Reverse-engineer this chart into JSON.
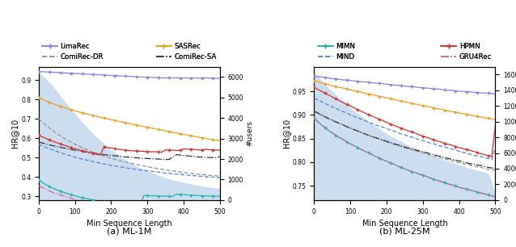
{
  "ml1m": {
    "x": [
      0,
      10,
      20,
      30,
      40,
      50,
      60,
      70,
      80,
      90,
      100,
      110,
      120,
      130,
      140,
      150,
      160,
      170,
      180,
      190,
      200,
      210,
      220,
      230,
      240,
      250,
      260,
      270,
      280,
      290,
      300,
      310,
      320,
      330,
      340,
      350,
      360,
      370,
      380,
      390,
      400,
      410,
      420,
      430,
      440,
      450,
      460,
      470,
      480,
      490,
      500
    ],
    "limarec": [
      0.945,
      0.944,
      0.943,
      0.942,
      0.941,
      0.94,
      0.939,
      0.938,
      0.937,
      0.936,
      0.935,
      0.934,
      0.933,
      0.932,
      0.931,
      0.93,
      0.929,
      0.928,
      0.927,
      0.926,
      0.925,
      0.924,
      0.923,
      0.922,
      0.921,
      0.92,
      0.919,
      0.918,
      0.917,
      0.916,
      0.916,
      0.915,
      0.914,
      0.913,
      0.912,
      0.912,
      0.913,
      0.912,
      0.913,
      0.912,
      0.912,
      0.912,
      0.911,
      0.912,
      0.911,
      0.911,
      0.912,
      0.911,
      0.911,
      0.91,
      0.91
    ],
    "sasrec": [
      0.808,
      0.8,
      0.792,
      0.785,
      0.778,
      0.771,
      0.765,
      0.759,
      0.753,
      0.747,
      0.742,
      0.737,
      0.732,
      0.727,
      0.722,
      0.717,
      0.713,
      0.709,
      0.704,
      0.7,
      0.696,
      0.692,
      0.688,
      0.684,
      0.68,
      0.676,
      0.672,
      0.668,
      0.664,
      0.66,
      0.657,
      0.653,
      0.649,
      0.645,
      0.642,
      0.638,
      0.634,
      0.631,
      0.627,
      0.623,
      0.62,
      0.616,
      0.613,
      0.609,
      0.606,
      0.602,
      0.599,
      0.596,
      0.593,
      0.59,
      0.587
    ],
    "comirec_dr": [
      0.7,
      0.683,
      0.667,
      0.652,
      0.638,
      0.624,
      0.612,
      0.6,
      0.589,
      0.579,
      0.569,
      0.56,
      0.551,
      0.543,
      0.535,
      0.528,
      0.521,
      0.514,
      0.508,
      0.502,
      0.496,
      0.491,
      0.486,
      0.481,
      0.477,
      0.472,
      0.468,
      0.464,
      0.46,
      0.456,
      0.453,
      0.449,
      0.446,
      0.442,
      0.439,
      0.436,
      0.433,
      0.431,
      0.428,
      0.425,
      0.423,
      0.42,
      0.418,
      0.416,
      0.414,
      0.412,
      0.41,
      0.408,
      0.407,
      0.405,
      0.403
    ],
    "comirec_sa": [
      0.58,
      0.575,
      0.57,
      0.565,
      0.561,
      0.557,
      0.553,
      0.549,
      0.545,
      0.542,
      0.538,
      0.535,
      0.532,
      0.529,
      0.526,
      0.523,
      0.52,
      0.518,
      0.515,
      0.513,
      0.511,
      0.509,
      0.507,
      0.505,
      0.503,
      0.502,
      0.5,
      0.499,
      0.497,
      0.496,
      0.495,
      0.494,
      0.493,
      0.492,
      0.491,
      0.49,
      0.49,
      0.503,
      0.515,
      0.513,
      0.511,
      0.509,
      0.507,
      0.505,
      0.503,
      0.502,
      0.501,
      0.5,
      0.5,
      0.499,
      0.505
    ],
    "mimn": [
      0.383,
      0.371,
      0.36,
      0.35,
      0.341,
      0.333,
      0.326,
      0.319,
      0.313,
      0.307,
      0.302,
      0.297,
      0.293,
      0.289,
      0.285,
      0.281,
      0.278,
      0.275,
      0.272,
      0.269,
      0.267,
      0.264,
      0.262,
      0.26,
      0.258,
      0.256,
      0.254,
      0.252,
      0.251,
      0.303,
      0.303,
      0.302,
      0.302,
      0.301,
      0.301,
      0.3,
      0.3,
      0.299,
      0.31,
      0.309,
      0.308,
      0.307,
      0.305,
      0.304,
      0.303,
      0.302,
      0.301,
      0.301,
      0.3,
      0.3,
      0.3
    ],
    "hpmn": [
      0.616,
      0.607,
      0.599,
      0.591,
      0.584,
      0.577,
      0.57,
      0.564,
      0.558,
      0.552,
      0.546,
      0.541,
      0.536,
      0.531,
      0.526,
      0.522,
      0.517,
      0.513,
      0.555,
      0.552,
      0.549,
      0.546,
      0.543,
      0.541,
      0.538,
      0.536,
      0.535,
      0.534,
      0.533,
      0.532,
      0.531,
      0.53,
      0.53,
      0.529,
      0.528,
      0.54,
      0.539,
      0.538,
      0.537,
      0.537,
      0.545,
      0.544,
      0.543,
      0.542,
      0.54,
      0.539,
      0.543,
      0.541,
      0.54,
      0.539,
      0.537
    ],
    "mind": [
      0.568,
      0.56,
      0.552,
      0.545,
      0.538,
      0.531,
      0.525,
      0.519,
      0.513,
      0.508,
      0.502,
      0.497,
      0.492,
      0.488,
      0.483,
      0.479,
      0.475,
      0.471,
      0.467,
      0.464,
      0.46,
      0.457,
      0.453,
      0.45,
      0.447,
      0.444,
      0.441,
      0.439,
      0.436,
      0.434,
      0.431,
      0.429,
      0.427,
      0.425,
      0.422,
      0.42,
      0.418,
      0.416,
      0.414,
      0.413,
      0.411,
      0.409,
      0.407,
      0.406,
      0.404,
      0.403,
      0.401,
      0.4,
      0.399,
      0.397,
      0.397
    ],
    "gru4rec": [
      0.355,
      0.345,
      0.336,
      0.327,
      0.319,
      0.312,
      0.306,
      0.3,
      0.294,
      0.289,
      0.284,
      0.28,
      0.276,
      0.272,
      0.268,
      0.265,
      0.262,
      0.259,
      0.256,
      0.254,
      0.252,
      0.25,
      0.248,
      0.246,
      0.244,
      0.242,
      0.241,
      0.239,
      0.238,
      0.267,
      0.267,
      0.266,
      0.265,
      0.264,
      0.263,
      0.263,
      0.262,
      0.261,
      0.261,
      0.26,
      0.267,
      0.266,
      0.266,
      0.265,
      0.264,
      0.264,
      0.263,
      0.263,
      0.262,
      0.262,
      0.262
    ],
    "users": [
      6200,
      6050,
      5870,
      5680,
      5480,
      5260,
      5030,
      4810,
      4590,
      4380,
      4170,
      3970,
      3770,
      3570,
      3380,
      3200,
      3030,
      2870,
      2710,
      2560,
      2420,
      2290,
      2160,
      2040,
      1930,
      1820,
      1720,
      1630,
      1540,
      1460,
      1380,
      1310,
      1240,
      1180,
      1120,
      1060,
      1010,
      960,
      910,
      870,
      830,
      790,
      760,
      720,
      690,
      660,
      630,
      610,
      580,
      560,
      530
    ],
    "users_max": 6500,
    "ylim": [
      0.28,
      0.97
    ],
    "yticks": [
      0.3,
      0.4,
      0.5,
      0.6,
      0.7,
      0.8,
      0.9
    ],
    "title": "(a) ML-1M"
  },
  "ml25m": {
    "x": [
      0,
      10,
      20,
      30,
      40,
      50,
      60,
      70,
      80,
      90,
      100,
      110,
      120,
      130,
      140,
      150,
      160,
      170,
      180,
      190,
      200,
      210,
      220,
      230,
      240,
      250,
      260,
      270,
      280,
      290,
      300,
      310,
      320,
      330,
      340,
      350,
      360,
      370,
      380,
      390,
      400,
      410,
      420,
      430,
      440,
      450,
      460,
      470,
      480,
      490,
      500
    ],
    "limarec": [
      0.982,
      0.981,
      0.98,
      0.979,
      0.978,
      0.977,
      0.976,
      0.975,
      0.974,
      0.974,
      0.973,
      0.972,
      0.971,
      0.97,
      0.97,
      0.969,
      0.968,
      0.967,
      0.967,
      0.966,
      0.965,
      0.964,
      0.963,
      0.963,
      0.962,
      0.961,
      0.96,
      0.96,
      0.959,
      0.958,
      0.957,
      0.957,
      0.956,
      0.955,
      0.955,
      0.954,
      0.953,
      0.952,
      0.952,
      0.951,
      0.95,
      0.95,
      0.949,
      0.949,
      0.948,
      0.947,
      0.947,
      0.946,
      0.946,
      0.945,
      0.944
    ],
    "sasrec": [
      0.972,
      0.97,
      0.968,
      0.966,
      0.964,
      0.962,
      0.96,
      0.958,
      0.957,
      0.955,
      0.953,
      0.951,
      0.95,
      0.948,
      0.946,
      0.944,
      0.943,
      0.941,
      0.939,
      0.938,
      0.936,
      0.934,
      0.933,
      0.931,
      0.929,
      0.928,
      0.926,
      0.924,
      0.923,
      0.921,
      0.92,
      0.918,
      0.917,
      0.915,
      0.913,
      0.912,
      0.91,
      0.909,
      0.907,
      0.906,
      0.904,
      0.903,
      0.901,
      0.9,
      0.898,
      0.897,
      0.896,
      0.894,
      0.893,
      0.891,
      0.89
    ],
    "comirec_dr": [
      0.908,
      0.904,
      0.9,
      0.896,
      0.893,
      0.889,
      0.886,
      0.882,
      0.879,
      0.876,
      0.872,
      0.869,
      0.866,
      0.863,
      0.86,
      0.857,
      0.854,
      0.852,
      0.849,
      0.846,
      0.843,
      0.841,
      0.838,
      0.836,
      0.833,
      0.831,
      0.829,
      0.826,
      0.824,
      0.822,
      0.82,
      0.817,
      0.815,
      0.813,
      0.811,
      0.809,
      0.807,
      0.805,
      0.803,
      0.801,
      0.799,
      0.797,
      0.796,
      0.794,
      0.792,
      0.79,
      0.789,
      0.787,
      0.785,
      0.784,
      0.782
    ],
    "comirec_sa": [
      0.908,
      0.904,
      0.9,
      0.896,
      0.892,
      0.889,
      0.885,
      0.882,
      0.879,
      0.875,
      0.872,
      0.869,
      0.866,
      0.863,
      0.86,
      0.857,
      0.854,
      0.852,
      0.849,
      0.847,
      0.844,
      0.842,
      0.839,
      0.837,
      0.835,
      0.832,
      0.83,
      0.828,
      0.826,
      0.824,
      0.822,
      0.82,
      0.818,
      0.816,
      0.814,
      0.812,
      0.81,
      0.808,
      0.806,
      0.804,
      0.803,
      0.801,
      0.799,
      0.797,
      0.796,
      0.794,
      0.793,
      0.791,
      0.789,
      0.788,
      0.786
    ],
    "mimn": [
      0.893,
      0.886,
      0.879,
      0.873,
      0.867,
      0.862,
      0.857,
      0.852,
      0.848,
      0.843,
      0.839,
      0.835,
      0.831,
      0.827,
      0.823,
      0.82,
      0.816,
      0.812,
      0.809,
      0.805,
      0.802,
      0.799,
      0.796,
      0.792,
      0.789,
      0.786,
      0.783,
      0.78,
      0.778,
      0.775,
      0.772,
      0.77,
      0.767,
      0.764,
      0.762,
      0.759,
      0.757,
      0.754,
      0.752,
      0.75,
      0.747,
      0.745,
      0.743,
      0.741,
      0.739,
      0.737,
      0.735,
      0.733,
      0.731,
      0.729,
      0.727
    ],
    "hpmn": [
      0.958,
      0.954,
      0.95,
      0.946,
      0.942,
      0.938,
      0.934,
      0.93,
      0.926,
      0.922,
      0.919,
      0.915,
      0.911,
      0.908,
      0.904,
      0.901,
      0.897,
      0.894,
      0.891,
      0.888,
      0.884,
      0.881,
      0.878,
      0.875,
      0.872,
      0.869,
      0.866,
      0.864,
      0.861,
      0.858,
      0.855,
      0.853,
      0.85,
      0.848,
      0.845,
      0.843,
      0.84,
      0.838,
      0.836,
      0.833,
      0.831,
      0.829,
      0.827,
      0.825,
      0.823,
      0.821,
      0.818,
      0.816,
      0.814,
      0.812,
      0.878
    ],
    "mind": [
      0.935,
      0.932,
      0.928,
      0.924,
      0.921,
      0.917,
      0.914,
      0.91,
      0.907,
      0.904,
      0.9,
      0.897,
      0.894,
      0.891,
      0.888,
      0.885,
      0.882,
      0.879,
      0.876,
      0.874,
      0.871,
      0.868,
      0.866,
      0.863,
      0.86,
      0.858,
      0.855,
      0.853,
      0.85,
      0.848,
      0.846,
      0.843,
      0.841,
      0.839,
      0.836,
      0.834,
      0.832,
      0.83,
      0.828,
      0.826,
      0.823,
      0.821,
      0.819,
      0.817,
      0.815,
      0.813,
      0.812,
      0.81,
      0.808,
      0.806,
      0.83
    ],
    "gru4rec": [
      0.893,
      0.886,
      0.879,
      0.873,
      0.867,
      0.862,
      0.857,
      0.852,
      0.848,
      0.843,
      0.839,
      0.835,
      0.831,
      0.827,
      0.823,
      0.82,
      0.816,
      0.812,
      0.809,
      0.805,
      0.802,
      0.799,
      0.796,
      0.792,
      0.789,
      0.786,
      0.783,
      0.78,
      0.778,
      0.775,
      0.772,
      0.77,
      0.767,
      0.764,
      0.762,
      0.759,
      0.757,
      0.754,
      0.752,
      0.75,
      0.747,
      0.745,
      0.743,
      0.741,
      0.739,
      0.737,
      0.735,
      0.733,
      0.731,
      0.729,
      0.727
    ],
    "users": [
      162000,
      157000,
      152000,
      147000,
      142000,
      138000,
      133000,
      129000,
      125000,
      121000,
      117000,
      113000,
      110000,
      106000,
      103000,
      99000,
      96000,
      93000,
      90000,
      87000,
      84000,
      81000,
      79000,
      76000,
      74000,
      71000,
      69000,
      67000,
      65000,
      63000,
      61000,
      59000,
      57000,
      55000,
      54000,
      52000,
      50000,
      49000,
      47000,
      46000,
      44000,
      43000,
      41000,
      40000,
      38000,
      37000,
      36000,
      35000,
      33000,
      20000,
      8000
    ],
    "users_max": 170000,
    "ylim": [
      0.72,
      1.002
    ],
    "yticks": [
      0.75,
      0.8,
      0.85,
      0.9,
      0.95
    ],
    "title": "(b) ML-25M"
  },
  "colors": {
    "limarec": "#8b7fdc",
    "sasrec": "#e8a020",
    "comirec_dr": "#909090",
    "comirec_sa": "#303030",
    "mimn": "#20b2aa",
    "hpmn": "#d03030",
    "mind": "#5080d0",
    "gru4rec": "#d060a0"
  },
  "fill_color": "#ccddf0",
  "xlabel": "Min Sequence Length",
  "ylabel": "HR@10",
  "ylabel_right": "#users"
}
